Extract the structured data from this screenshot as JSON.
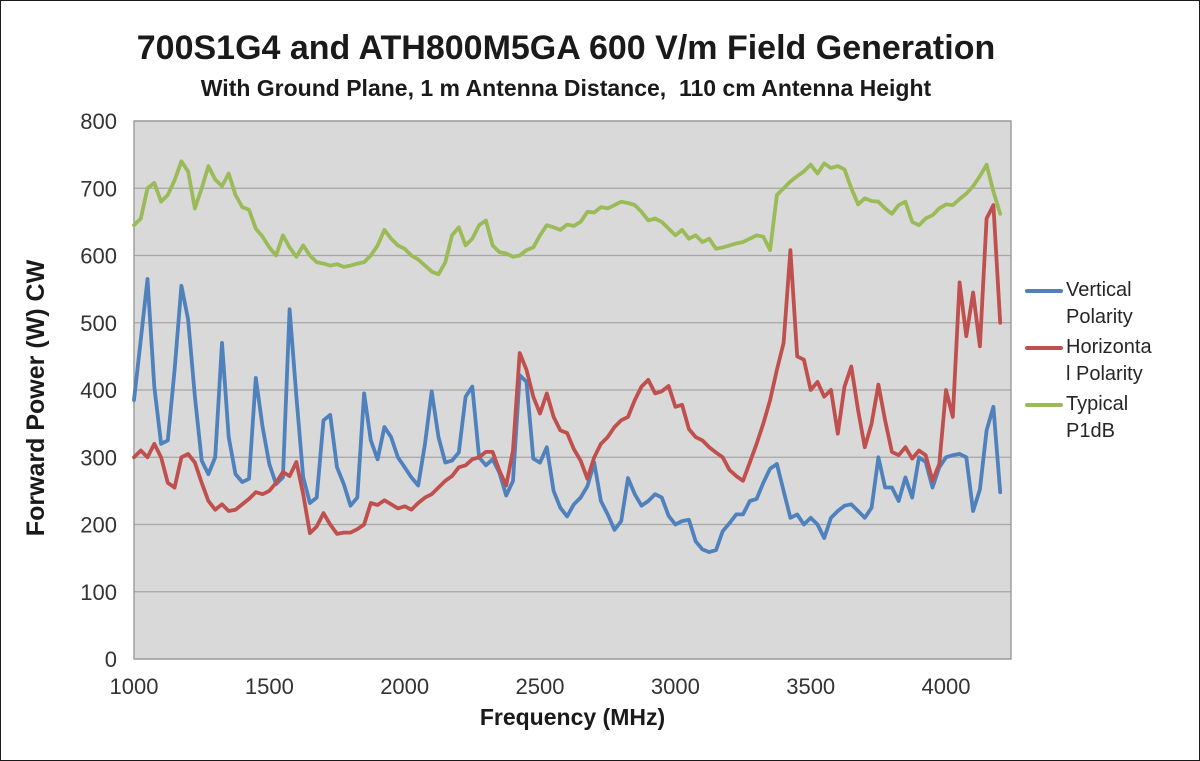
{
  "chart": {
    "title": "700S1G4 and ATH800M5GA 600 V/m Field Generation",
    "subtitle": "With Ground Plane, 1 m Antenna Distance,  110 cm Antenna Height",
    "xlabel": "Frequency (MHz)",
    "ylabel": "Forward Power (W) CW"
  },
  "legend": {
    "items": [
      {
        "name": "Vertical Polarity",
        "lines": [
          "Vertical",
          "Polarity"
        ],
        "color": "#4F81BD"
      },
      {
        "name": "Horizontal Polarity",
        "lines": [
          "Horizonta",
          "l Polarity"
        ],
        "color": "#C0504D"
      },
      {
        "name": "Typical P1dB",
        "lines": [
          "Typical",
          "P1dB"
        ],
        "color": "#9BBB59"
      }
    ]
  },
  "colors": {
    "plot_background": "#D9D9D9",
    "gridline": "#A6A6A6",
    "plot_border": "#9B9B9B",
    "tick_text": "#333333",
    "series_blue": "#4F81BD",
    "series_red": "#C0504D",
    "series_green": "#9BBB59"
  },
  "chart_data": {
    "type": "line",
    "title": "700S1G4 and ATH800M5GA 600 V/m Field Generation",
    "subtitle": "With Ground Plane, 1 m Antenna Distance,  110 cm Antenna Height",
    "xlabel": "Frequency (MHz)",
    "ylabel": "Forward Power (W) CW",
    "xlim": [
      1000,
      4240
    ],
    "ylim": [
      0,
      800
    ],
    "x_ticks": [
      1000,
      1500,
      2000,
      2500,
      3000,
      3500,
      4000
    ],
    "y_ticks": [
      0,
      100,
      200,
      300,
      400,
      500,
      600,
      700,
      800
    ],
    "grid": "horizontal-only",
    "legend_position": "right",
    "x": [
      1000,
      1025,
      1050,
      1075,
      1100,
      1125,
      1150,
      1175,
      1200,
      1225,
      1250,
      1275,
      1300,
      1325,
      1350,
      1375,
      1400,
      1425,
      1450,
      1475,
      1500,
      1525,
      1550,
      1575,
      1600,
      1625,
      1650,
      1675,
      1700,
      1725,
      1750,
      1775,
      1800,
      1825,
      1850,
      1875,
      1900,
      1925,
      1950,
      1975,
      2000,
      2025,
      2050,
      2075,
      2100,
      2125,
      2150,
      2175,
      2200,
      2225,
      2250,
      2275,
      2300,
      2325,
      2350,
      2375,
      2400,
      2425,
      2450,
      2475,
      2500,
      2525,
      2550,
      2575,
      2600,
      2625,
      2650,
      2675,
      2700,
      2725,
      2750,
      2775,
      2800,
      2825,
      2850,
      2875,
      2900,
      2925,
      2950,
      2975,
      3000,
      3025,
      3050,
      3075,
      3100,
      3125,
      3150,
      3175,
      3200,
      3225,
      3250,
      3275,
      3300,
      3325,
      3350,
      3375,
      3400,
      3425,
      3450,
      3475,
      3500,
      3525,
      3550,
      3575,
      3600,
      3625,
      3650,
      3675,
      3700,
      3725,
      3750,
      3775,
      3800,
      3825,
      3850,
      3875,
      3900,
      3925,
      3950,
      3975,
      4000,
      4025,
      4050,
      4075,
      4100,
      4125,
      4150,
      4175,
      4200
    ],
    "series": [
      {
        "name": "Vertical Polarity",
        "color": "#4F81BD",
        "values": [
          385,
          475,
          565,
          405,
          320,
          325,
          430,
          555,
          505,
          390,
          295,
          275,
          300,
          470,
          330,
          275,
          263,
          268,
          418,
          345,
          290,
          260,
          270,
          520,
          390,
          270,
          232,
          240,
          355,
          363,
          285,
          260,
          228,
          240,
          395,
          325,
          297,
          345,
          330,
          300,
          285,
          270,
          258,
          320,
          398,
          330,
          292,
          295,
          307,
          390,
          405,
          300,
          288,
          297,
          277,
          243,
          265,
          422,
          412,
          298,
          292,
          315,
          250,
          225,
          212,
          230,
          240,
          257,
          292,
          235,
          215,
          192,
          205,
          269,
          245,
          228,
          235,
          245,
          240,
          213,
          200,
          205,
          207,
          175,
          163,
          159,
          162,
          190,
          202,
          215,
          215,
          235,
          238,
          262,
          283,
          290,
          250,
          210,
          215,
          200,
          210,
          200,
          180,
          210,
          220,
          228,
          230,
          220,
          210,
          225,
          300,
          255,
          255,
          235,
          270,
          240,
          300,
          293,
          255,
          285,
          300,
          303,
          305,
          300,
          220,
          252,
          340,
          375,
          248
        ]
      },
      {
        "name": "Horizontal Polarity",
        "color": "#C0504D",
        "values": [
          300,
          310,
          300,
          320,
          300,
          262,
          255,
          300,
          305,
          292,
          262,
          235,
          222,
          230,
          220,
          222,
          230,
          238,
          248,
          245,
          250,
          262,
          278,
          272,
          293,
          245,
          187,
          197,
          217,
          200,
          186,
          188,
          188,
          193,
          200,
          232,
          229,
          236,
          230,
          224,
          227,
          222,
          232,
          240,
          245,
          255,
          265,
          272,
          285,
          288,
          297,
          300,
          308,
          308,
          280,
          258,
          310,
          455,
          430,
          390,
          365,
          395,
          360,
          340,
          336,
          312,
          295,
          268,
          300,
          320,
          330,
          345,
          355,
          360,
          385,
          405,
          415,
          395,
          398,
          406,
          375,
          378,
          342,
          330,
          325,
          315,
          307,
          300,
          281,
          272,
          265,
          292,
          320,
          350,
          385,
          430,
          470,
          608,
          450,
          445,
          400,
          412,
          390,
          400,
          335,
          405,
          435,
          370,
          315,
          350,
          408,
          355,
          308,
          303,
          315,
          298,
          310,
          303,
          265,
          290,
          400,
          360,
          560,
          480,
          545,
          465,
          655,
          675,
          500
        ]
      },
      {
        "name": "Typical P1dB",
        "color": "#9BBB59",
        "values": [
          645,
          655,
          700,
          708,
          680,
          690,
          712,
          740,
          725,
          670,
          700,
          733,
          713,
          703,
          722,
          690,
          672,
          668,
          640,
          628,
          612,
          600,
          630,
          612,
          598,
          615,
          600,
          590,
          588,
          585,
          587,
          583,
          585,
          588,
          590,
          600,
          615,
          638,
          625,
          615,
          610,
          600,
          594,
          585,
          576,
          572,
          590,
          630,
          642,
          615,
          625,
          645,
          652,
          615,
          605,
          603,
          598,
          600,
          608,
          612,
          630,
          645,
          642,
          638,
          646,
          644,
          650,
          665,
          664,
          672,
          670,
          675,
          680,
          678,
          675,
          665,
          652,
          655,
          650,
          640,
          630,
          638,
          625,
          630,
          620,
          625,
          610,
          612,
          615,
          618,
          620,
          625,
          630,
          628,
          608,
          690,
          700,
          710,
          718,
          725,
          735,
          722,
          737,
          730,
          733,
          728,
          700,
          676,
          685,
          681,
          680,
          670,
          662,
          675,
          680,
          650,
          645,
          655,
          660,
          670,
          676,
          675,
          684,
          692,
          703,
          718,
          735,
          695,
          662
        ]
      }
    ]
  }
}
